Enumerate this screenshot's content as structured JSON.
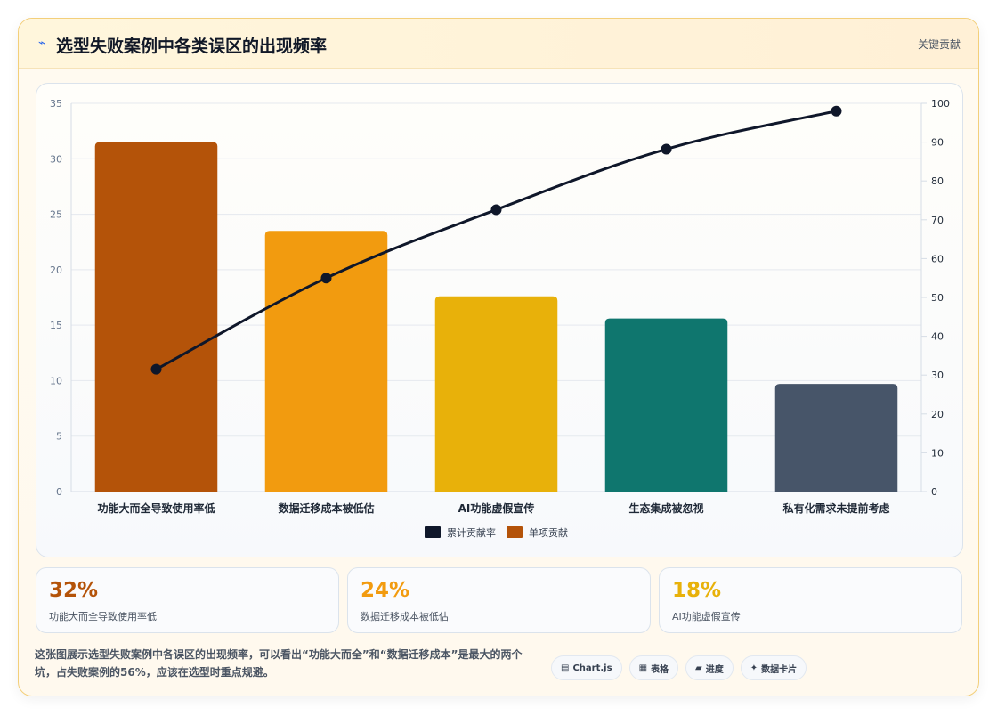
{
  "header": {
    "icon": "⌁",
    "title": "选型失败案例中各类误区的出现频率",
    "tag": "关键贡献"
  },
  "chart_data": {
    "type": "bar",
    "categories": [
      "功能大而全导致使用率低",
      "数据迁移成本被低估",
      "AI功能虚假宣传",
      "生态集成被忽视",
      "私有化需求未提前考虑"
    ],
    "series": [
      {
        "name": "单项贡献",
        "type": "bar",
        "axis": "left",
        "values": [
          31.5,
          23.5,
          17.6,
          15.6,
          9.7
        ],
        "colors": [
          "#b45309",
          "#f29b0f",
          "#e8b10a",
          "#0f766e",
          "#475569"
        ]
      },
      {
        "name": "累计贡献率",
        "type": "line",
        "axis": "right",
        "values": [
          31.5,
          55,
          72.6,
          88.2,
          98
        ],
        "color": "#0f172a"
      }
    ],
    "y_left": {
      "min": 0,
      "max": 35,
      "ticks": [
        0,
        5,
        10,
        15,
        20,
        25,
        30,
        35
      ]
    },
    "y_right": {
      "min": 0,
      "max": 100,
      "ticks": [
        0,
        10,
        20,
        30,
        40,
        50,
        60,
        70,
        80,
        90,
        100
      ]
    },
    "legend": {
      "position": "bottom",
      "items": [
        {
          "label": "累计贡献率",
          "color": "#0f172a"
        },
        {
          "label": "单项贡献",
          "color": "#b45309"
        }
      ]
    },
    "grid": true
  },
  "stats": [
    {
      "value": "32%",
      "label": "功能大而全导致使用率低",
      "color": "#b45309"
    },
    {
      "value": "24%",
      "label": "数据迁移成本被低估",
      "color": "#f29b0f"
    },
    {
      "value": "18%",
      "label": "AI功能虚假宣传",
      "color": "#e8b10a"
    }
  ],
  "description": "这张图展示选型失败案例中各误区的出现频率，可以看出“功能大而全”和“数据迁移成本”是最大的两个坑，占失败案例的56%，应该在选型时重点规避。",
  "chips": [
    {
      "icon": "▤",
      "label": "Chart.js"
    },
    {
      "icon": "▦",
      "label": "表格"
    },
    {
      "icon": "▰",
      "label": "进度"
    },
    {
      "icon": "✦",
      "label": "数据卡片"
    }
  ]
}
